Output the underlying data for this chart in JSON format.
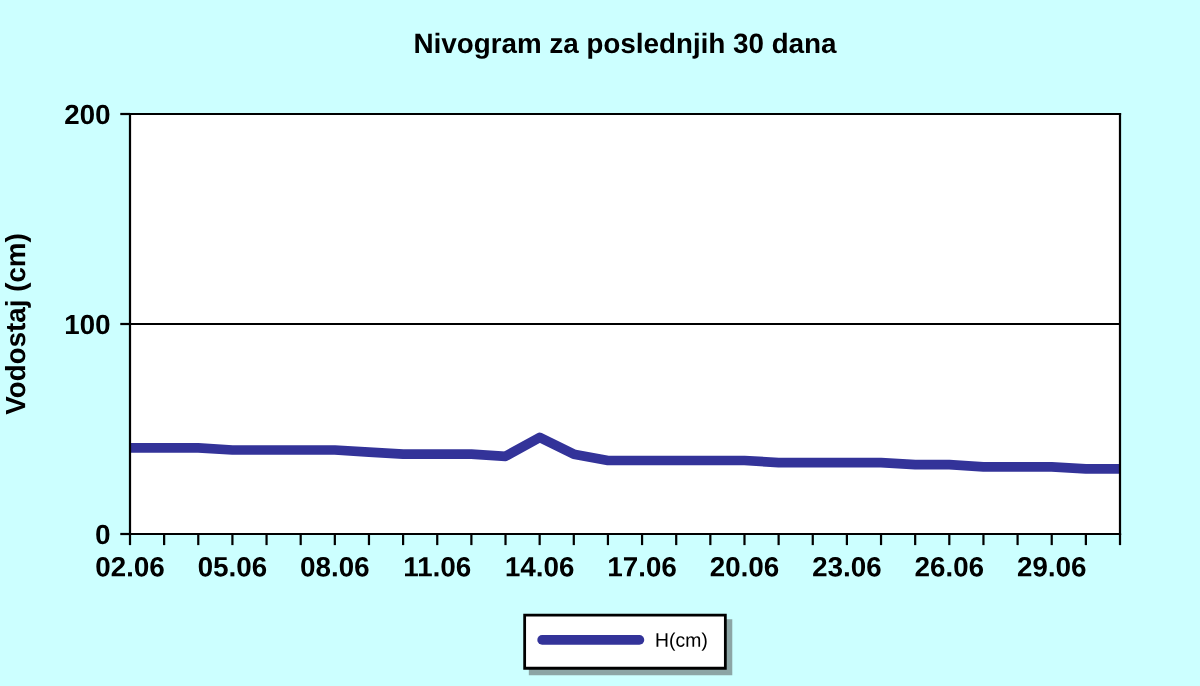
{
  "chart_data": {
    "type": "line",
    "title": "Nivogram za poslednjih 30 dana",
    "ylabel": "Vodostaj (cm)",
    "categories": [
      "02.06",
      null,
      null,
      "05.06",
      null,
      null,
      "08.06",
      null,
      null,
      "11.06",
      null,
      null,
      "14.06",
      null,
      null,
      "17.06",
      null,
      null,
      "20.06",
      null,
      null,
      "23.06",
      null,
      null,
      "26.06",
      null,
      null,
      "29.06",
      null,
      null
    ],
    "series": [
      {
        "name": "H(cm)",
        "color": "#333399",
        "values": [
          41,
          41,
          41,
          40,
          40,
          40,
          40,
          39,
          38,
          38,
          38,
          37,
          46,
          38,
          35,
          35,
          35,
          35,
          35,
          34,
          34,
          34,
          34,
          33,
          33,
          32,
          32,
          32,
          31,
          31
        ]
      }
    ],
    "ylim": [
      0,
      200
    ],
    "yticks": [
      0,
      100,
      200
    ],
    "grid": "y",
    "legend": "bottom",
    "marker": "none",
    "line_style": "solid"
  }
}
